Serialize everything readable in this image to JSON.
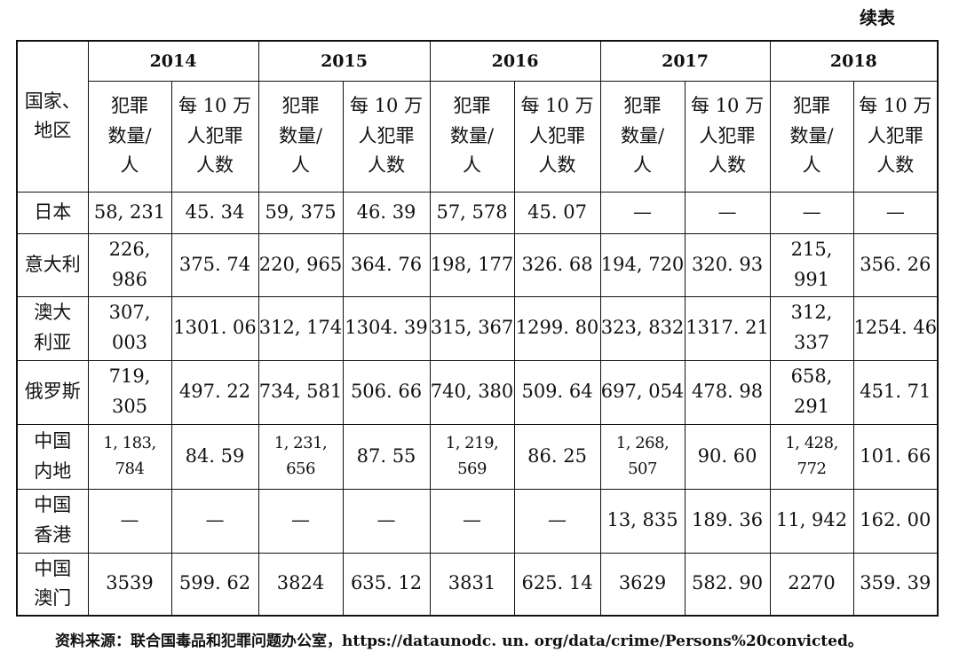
{
  "continuation_label": "续表",
  "table": {
    "corner_header": "国家、\n地区",
    "years": [
      "2014",
      "2015",
      "2016",
      "2017",
      "2018"
    ],
    "sub_headers": [
      "犯罪\n数量/\n人",
      "每 10 万\n人犯罪\n人数"
    ],
    "rows": [
      [
        "日本",
        "58, 231",
        "45. 34",
        "59, 375",
        "46. 39",
        "57, 578",
        "45. 07",
        "—",
        "—",
        "—",
        "—"
      ],
      [
        "意大利",
        "226, 986",
        "375. 74",
        "220, 965",
        "364. 76",
        "198, 177",
        "326. 68",
        "194, 720",
        "320. 93",
        "215, 991",
        "356. 26"
      ],
      [
        "澳大\n利亚",
        "307, 003",
        "1301. 06",
        "312, 174",
        "1304. 39",
        "315, 367",
        "1299. 80",
        "323, 832",
        "1317. 21",
        "312, 337",
        "1254. 46"
      ],
      [
        "俄罗斯",
        "719, 305",
        "497. 22",
        "734, 581",
        "506. 66",
        "740, 380",
        "509. 64",
        "697, 054",
        "478. 98",
        "658, 291",
        "451. 71"
      ],
      [
        "中国\n内地",
        "1, 183, 784",
        "84. 59",
        "1, 231, 656",
        "87. 55",
        "1, 219, 569",
        "86. 25",
        "1, 268, 507",
        "90. 60",
        "1, 428, 772",
        "101. 66"
      ],
      [
        "中国\n香港",
        "—",
        "—",
        "—",
        "—",
        "—",
        "—",
        "13, 835",
        "189. 36",
        "11, 942",
        "162. 00"
      ],
      [
        "中国\n澳门",
        "3539",
        "599. 62",
        "3824",
        "635. 12",
        "3831",
        "625. 14",
        "3629",
        "582. 90",
        "2270",
        "359. 39"
      ]
    ]
  },
  "source": "资料来源：联合国毒品和犯罪问题办公室，https://dataunodc. un. org/data/crime/Persons%20convicted。"
}
